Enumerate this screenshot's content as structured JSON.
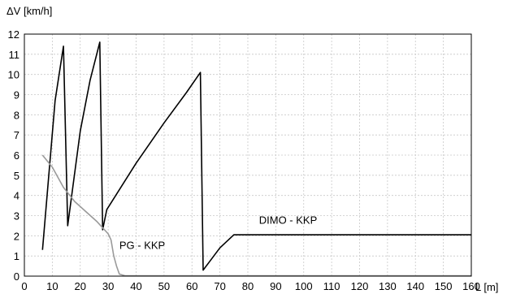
{
  "chart_data": {
    "type": "line",
    "xlabel": "L [m]",
    "ylabel": "ΔV [km/h]",
    "xlim": [
      0,
      160
    ],
    "ylim": [
      0,
      12
    ],
    "xticks": [
      0,
      10,
      20,
      30,
      40,
      50,
      60,
      70,
      80,
      90,
      100,
      110,
      120,
      130,
      140,
      150,
      160
    ],
    "yticks": [
      0,
      1,
      2,
      3,
      4,
      5,
      6,
      7,
      8,
      9,
      10,
      11,
      12
    ],
    "grid": true,
    "series": [
      {
        "name": "DIMO - KKP",
        "color": "#000000",
        "points": [
          [
            6.5,
            1.3
          ],
          [
            11,
            8.7
          ],
          [
            14,
            11.4
          ],
          [
            15.5,
            2.5
          ],
          [
            20,
            7.2
          ],
          [
            23.5,
            9.7
          ],
          [
            27,
            11.6
          ],
          [
            28,
            2.3
          ],
          [
            29.5,
            3.3
          ],
          [
            40,
            5.6
          ],
          [
            50,
            7.6
          ],
          [
            58,
            9.1
          ],
          [
            63,
            10.1
          ],
          [
            64,
            0.3
          ],
          [
            70,
            1.4
          ],
          [
            75,
            2.05
          ],
          [
            80,
            2.05
          ],
          [
            120,
            2.05
          ],
          [
            160,
            2.05
          ]
        ]
      },
      {
        "name": "PG - KKP",
        "color": "#9a9a9a",
        "points": [
          [
            6.5,
            6.0
          ],
          [
            10,
            5.4
          ],
          [
            14,
            4.4
          ],
          [
            18,
            3.7
          ],
          [
            22,
            3.2
          ],
          [
            26,
            2.7
          ],
          [
            28,
            2.4
          ],
          [
            30,
            2.1
          ],
          [
            31,
            1.8
          ],
          [
            32,
            1.0
          ],
          [
            33,
            0.5
          ],
          [
            34,
            0.1
          ],
          [
            36,
            0.02
          ],
          [
            40,
            0.02
          ],
          [
            60,
            0.02
          ],
          [
            64,
            0.02
          ],
          [
            160,
            0.02
          ]
        ]
      }
    ],
    "annotations": [
      {
        "text": "DIMO - KKP",
        "x": 84,
        "y": 2.6
      },
      {
        "text": "PG - KKP",
        "x": 34,
        "y": 1.35
      }
    ]
  }
}
